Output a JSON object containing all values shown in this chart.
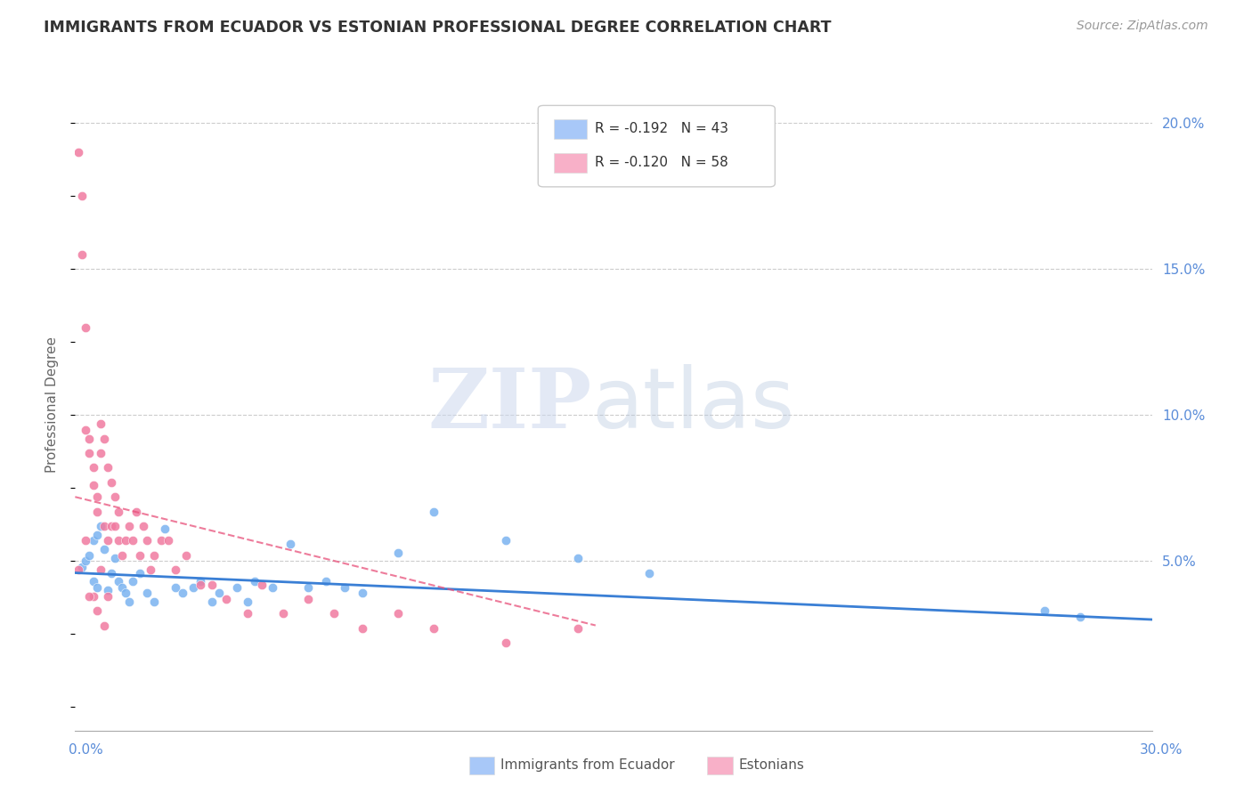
{
  "title": "IMMIGRANTS FROM ECUADOR VS ESTONIAN PROFESSIONAL DEGREE CORRELATION CHART",
  "source": "Source: ZipAtlas.com",
  "ylabel": "Professional Degree",
  "ylabel_right_ticks": [
    "20.0%",
    "15.0%",
    "10.0%",
    "5.0%"
  ],
  "ylabel_right_vals": [
    0.2,
    0.15,
    0.1,
    0.05
  ],
  "xmin": 0.0,
  "xmax": 0.3,
  "ymin": -0.008,
  "ymax": 0.215,
  "ecuador_color": "#7ab3f0",
  "estonian_color": "#f07aa0",
  "ecuador_trend_color": "#3a7fd5",
  "estonian_trend_color": "#e8507a",
  "watermark_zip_color": "#ccd8ee",
  "watermark_atlas_color": "#b8c8e0",
  "legend_label_1": "R = -0.192   N = 43",
  "legend_label_2": "R = -0.120   N = 58",
  "legend_color_1": "#a8c8f8",
  "legend_color_2": "#f8b0c8",
  "bottom_legend_label_1": "Immigrants from Ecuador",
  "bottom_legend_label_2": "Estonians",
  "ecuador_points_x": [
    0.002,
    0.003,
    0.004,
    0.005,
    0.005,
    0.006,
    0.007,
    0.008,
    0.009,
    0.01,
    0.011,
    0.012,
    0.013,
    0.014,
    0.015,
    0.016,
    0.018,
    0.02,
    0.022,
    0.025,
    0.028,
    0.03,
    0.033,
    0.035,
    0.038,
    0.04,
    0.045,
    0.048,
    0.05,
    0.055,
    0.06,
    0.065,
    0.07,
    0.075,
    0.08,
    0.09,
    0.1,
    0.12,
    0.14,
    0.16,
    0.27,
    0.28,
    0.006
  ],
  "ecuador_points_y": [
    0.048,
    0.05,
    0.052,
    0.043,
    0.057,
    0.059,
    0.062,
    0.054,
    0.04,
    0.046,
    0.051,
    0.043,
    0.041,
    0.039,
    0.036,
    0.043,
    0.046,
    0.039,
    0.036,
    0.061,
    0.041,
    0.039,
    0.041,
    0.043,
    0.036,
    0.039,
    0.041,
    0.036,
    0.043,
    0.041,
    0.056,
    0.041,
    0.043,
    0.041,
    0.039,
    0.053,
    0.067,
    0.057,
    0.051,
    0.046,
    0.033,
    0.031,
    0.041
  ],
  "estonian_points_x": [
    0.001,
    0.002,
    0.002,
    0.003,
    0.003,
    0.004,
    0.004,
    0.005,
    0.005,
    0.006,
    0.006,
    0.007,
    0.007,
    0.008,
    0.008,
    0.009,
    0.009,
    0.01,
    0.01,
    0.011,
    0.011,
    0.012,
    0.012,
    0.013,
    0.014,
    0.015,
    0.016,
    0.017,
    0.018,
    0.019,
    0.02,
    0.021,
    0.022,
    0.024,
    0.026,
    0.028,
    0.031,
    0.035,
    0.038,
    0.042,
    0.048,
    0.052,
    0.058,
    0.065,
    0.072,
    0.08,
    0.09,
    0.1,
    0.12,
    0.14,
    0.001,
    0.003,
    0.005,
    0.007,
    0.009,
    0.004,
    0.006,
    0.008
  ],
  "estonian_points_y": [
    0.19,
    0.175,
    0.155,
    0.13,
    0.095,
    0.092,
    0.087,
    0.082,
    0.076,
    0.072,
    0.067,
    0.097,
    0.087,
    0.092,
    0.062,
    0.082,
    0.057,
    0.077,
    0.062,
    0.072,
    0.062,
    0.057,
    0.067,
    0.052,
    0.057,
    0.062,
    0.057,
    0.067,
    0.052,
    0.062,
    0.057,
    0.047,
    0.052,
    0.057,
    0.057,
    0.047,
    0.052,
    0.042,
    0.042,
    0.037,
    0.032,
    0.042,
    0.032,
    0.037,
    0.032,
    0.027,
    0.032,
    0.027,
    0.022,
    0.027,
    0.047,
    0.057,
    0.038,
    0.047,
    0.038,
    0.038,
    0.033,
    0.028
  ],
  "ecuador_trend_x0": 0.0,
  "ecuador_trend_x1": 0.3,
  "ecuador_trend_y0": 0.046,
  "ecuador_trend_y1": 0.03,
  "estonian_trend_x0": 0.0,
  "estonian_trend_x1": 0.145,
  "estonian_trend_y0": 0.072,
  "estonian_trend_y1": 0.028
}
